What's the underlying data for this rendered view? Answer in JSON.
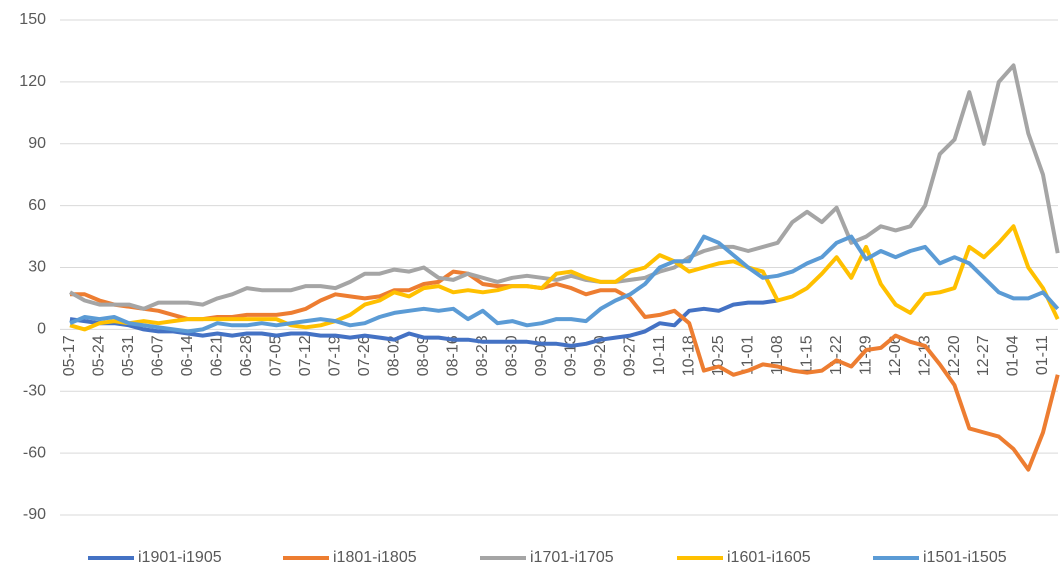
{
  "chart_data": {
    "type": "line",
    "categories": [
      "05-17",
      null,
      "05-24",
      null,
      "05-31",
      null,
      "06-07",
      null,
      "06-14",
      null,
      "06-21",
      null,
      "06-28",
      null,
      "07-05",
      null,
      "07-12",
      null,
      "07-19",
      null,
      "07-26",
      null,
      "08-02",
      null,
      "08-09",
      null,
      "08-16",
      null,
      "08-23",
      null,
      "08-30",
      null,
      "09-06",
      null,
      "09-13",
      null,
      "09-20",
      null,
      "09-27",
      null,
      "10-11",
      null,
      "10-18",
      null,
      "10-25",
      null,
      "11-01",
      null,
      "11-08",
      null,
      "11-15",
      null,
      "11-22",
      null,
      "11-29",
      null,
      "12-06",
      null,
      "12-13",
      null,
      "12-20",
      null,
      "12-27",
      null,
      "01-04",
      null,
      "01-11",
      null
    ],
    "series": [
      {
        "name": "i1901-i1905",
        "color": "#4472c4",
        "values": [
          5,
          4,
          3,
          3,
          2,
          0,
          -1,
          -1,
          -2,
          -3,
          -2,
          -3,
          -2,
          -2,
          -3,
          -2,
          -2,
          -3,
          -3,
          -4,
          -3,
          -4,
          -5,
          -2,
          -4,
          -4,
          -5,
          -5,
          -6,
          -6,
          -6,
          -6,
          -7,
          -7,
          -8,
          -7,
          -5,
          -4,
          -3,
          -1,
          3,
          2,
          9,
          10,
          9,
          12,
          13,
          13,
          14,
          null,
          null,
          null,
          null,
          null,
          null,
          null,
          null,
          null,
          null,
          null,
          null,
          null,
          null,
          null,
          null,
          null,
          null,
          null
        ]
      },
      {
        "name": "i1801-i1805",
        "color": "#ed7d31",
        "values": [
          17,
          17,
          14,
          12,
          11,
          10,
          9,
          7,
          5,
          5,
          6,
          6,
          7,
          7,
          7,
          8,
          10,
          14,
          17,
          16,
          15,
          16,
          19,
          19,
          22,
          23,
          28,
          27,
          22,
          21,
          21,
          21,
          20,
          22,
          20,
          17,
          19,
          19,
          15,
          6,
          7,
          9,
          3,
          -20,
          -18,
          -22,
          -20,
          -17,
          -18,
          -20,
          -21,
          -20,
          -15,
          -18,
          -10,
          -9,
          -3,
          -6,
          -8,
          -17,
          -27,
          -48,
          -50,
          -52,
          -58,
          -68,
          -50,
          -22
        ]
      },
      {
        "name": "i1701-i1705",
        "color": "#a5a5a5",
        "values": [
          18,
          14,
          12,
          12,
          12,
          10,
          13,
          13,
          13,
          12,
          15,
          17,
          20,
          19,
          19,
          19,
          21,
          21,
          20,
          23,
          27,
          27,
          29,
          28,
          30,
          25,
          24,
          27,
          25,
          23,
          25,
          26,
          25,
          24,
          26,
          24,
          23,
          23,
          24,
          25,
          28,
          30,
          35,
          38,
          40,
          40,
          38,
          40,
          42,
          52,
          57,
          52,
          59,
          42,
          45,
          50,
          48,
          50,
          60,
          85,
          92,
          115,
          90,
          120,
          128,
          95,
          75,
          37
        ]
      },
      {
        "name": "i1601-i1605",
        "color": "#ffc000",
        "values": [
          2,
          0,
          3,
          4,
          3,
          4,
          3,
          4,
          5,
          5,
          5,
          5,
          5,
          5,
          5,
          2,
          1,
          2,
          4,
          7,
          12,
          14,
          18,
          16,
          20,
          21,
          18,
          19,
          18,
          19,
          21,
          21,
          20,
          27,
          28,
          25,
          23,
          23,
          28,
          30,
          36,
          33,
          28,
          30,
          32,
          33,
          30,
          28,
          14,
          16,
          20,
          27,
          35,
          25,
          40,
          22,
          12,
          8,
          17,
          18,
          20,
          40,
          35,
          42,
          50,
          30,
          20,
          5
        ]
      },
      {
        "name": "i1501-i1505",
        "color": "#5b9bd5",
        "values": [
          3,
          6,
          5,
          6,
          3,
          2,
          1,
          0,
          -1,
          0,
          3,
          2,
          2,
          3,
          2,
          3,
          4,
          5,
          4,
          2,
          3,
          6,
          8,
          9,
          10,
          9,
          10,
          5,
          9,
          3,
          4,
          2,
          3,
          5,
          5,
          4,
          10,
          14,
          17,
          22,
          30,
          33,
          33,
          45,
          42,
          36,
          30,
          25,
          26,
          28,
          32,
          35,
          42,
          45,
          34,
          38,
          35,
          38,
          40,
          32,
          35,
          32,
          25,
          18,
          15,
          15,
          18,
          10
        ]
      }
    ],
    "ylim": [
      -90,
      150
    ],
    "yticks": [
      -90,
      -60,
      -30,
      0,
      30,
      60,
      90,
      120,
      150
    ],
    "grid": true
  }
}
